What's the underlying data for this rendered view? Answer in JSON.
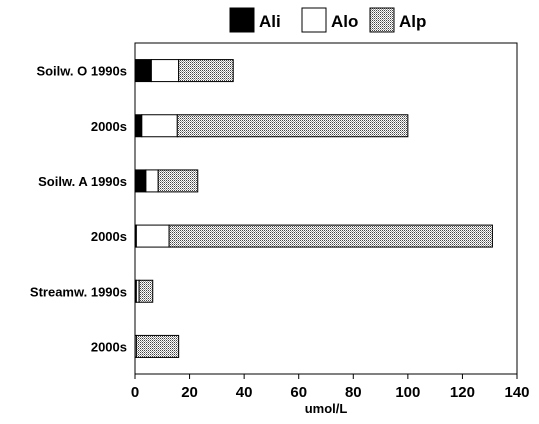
{
  "chart_data": {
    "type": "bar",
    "orientation": "horizontal",
    "stacked": true,
    "categories": [
      "Soilw. O 1990s",
      "2000s",
      "Soilw. A 1990s",
      "2000s",
      "Streamw. 1990s",
      "2000s"
    ],
    "series": [
      {
        "name": "Ali",
        "color": "#000000",
        "pattern": "solid",
        "values": [
          6,
          2.5,
          4,
          0.5,
          0.5,
          0
        ]
      },
      {
        "name": "Alo",
        "color": "#ffffff",
        "pattern": "none",
        "values": [
          10,
          13,
          4.5,
          12,
          1,
          0.5
        ]
      },
      {
        "name": "Alp",
        "color": "#d9d9d9",
        "pattern": "dotted",
        "values": [
          20,
          84.5,
          14.5,
          118.5,
          5,
          15.5
        ]
      }
    ],
    "xlabel": "umol/L",
    "ylabel": "",
    "xlim": [
      0,
      140
    ],
    "xticks": [
      0,
      20,
      40,
      60,
      80,
      100,
      120,
      140
    ],
    "grid": false,
    "legend_position": "top"
  }
}
